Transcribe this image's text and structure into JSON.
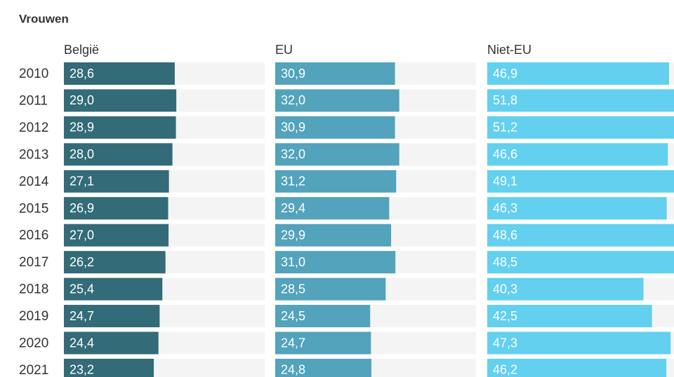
{
  "chart_data": {
    "type": "bar",
    "title": "Vrouwen",
    "categories": [
      "2010",
      "2011",
      "2012",
      "2013",
      "2014",
      "2015",
      "2016",
      "2017",
      "2018",
      "2019",
      "2020",
      "2021"
    ],
    "xlim": [
      0,
      51.8
    ],
    "series": [
      {
        "name": "België",
        "color": "#336b78",
        "values": [
          28.6,
          29.0,
          28.9,
          28.0,
          27.1,
          26.9,
          27.0,
          26.2,
          25.4,
          24.7,
          24.4,
          23.2
        ],
        "value_labels": [
          "28,6",
          "29,0",
          "28,9",
          "28,0",
          "27,1",
          "26,9",
          "27,0",
          "26,2",
          "25,4",
          "24,7",
          "24,4",
          "23,2"
        ]
      },
      {
        "name": "EU",
        "color": "#52a3bb",
        "values": [
          30.9,
          32.0,
          30.9,
          32.0,
          31.2,
          29.4,
          29.9,
          31.0,
          28.5,
          24.5,
          24.7,
          24.8
        ],
        "value_labels": [
          "30,9",
          "32,0",
          "30,9",
          "32,0",
          "31,2",
          "29,4",
          "29,9",
          "31,0",
          "28,5",
          "24,5",
          "24,7",
          "24,8"
        ]
      },
      {
        "name": "Niet-EU",
        "color": "#62d0ee",
        "values": [
          46.9,
          51.8,
          51.2,
          46.6,
          49.1,
          46.3,
          48.6,
          48.5,
          40.3,
          42.5,
          47.3,
          46.2
        ],
        "value_labels": [
          "46,9",
          "51,8",
          "51,2",
          "46,6",
          "49,1",
          "46,3",
          "48,6",
          "48,5",
          "40,3",
          "42,5",
          "47,3",
          "46,2"
        ]
      }
    ]
  }
}
